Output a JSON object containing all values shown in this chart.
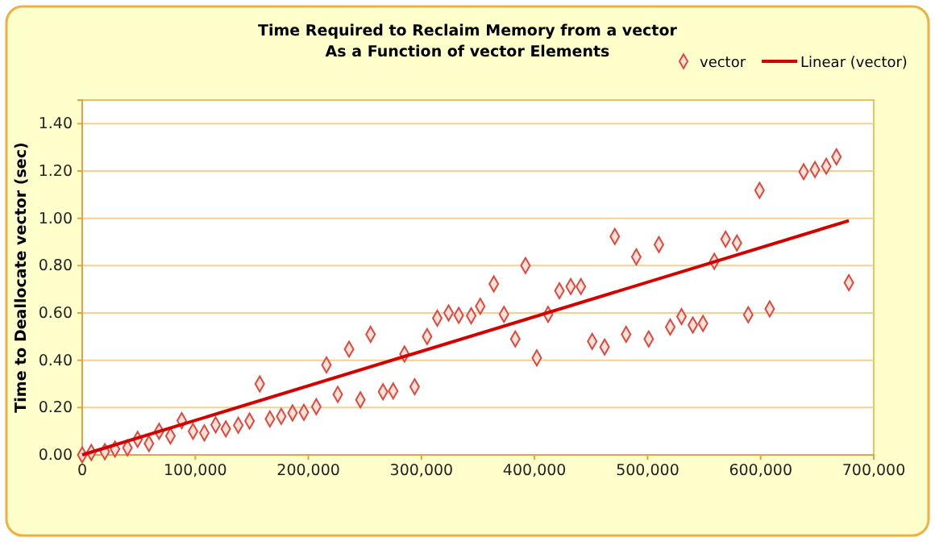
{
  "chart_data": {
    "type": "scatter",
    "title": "Time Required to Reclaim Memory from a vector\nAs a Function of vector Elements",
    "ylabel": "Time to Deallocate vector (sec)",
    "xlim": [
      0,
      700000
    ],
    "xticks": [
      {
        "value": 0,
        "label": "0"
      },
      {
        "value": 100000,
        "label": "100,000"
      },
      {
        "value": 200000,
        "label": "200,000"
      },
      {
        "value": 300000,
        "label": "300,000"
      },
      {
        "value": 400000,
        "label": "400,000"
      },
      {
        "value": 500000,
        "label": "500,000"
      },
      {
        "value": 600000,
        "label": "600,000"
      },
      {
        "value": 700000,
        "label": "700,000"
      }
    ],
    "ylim": [
      0,
      1.5
    ],
    "yticks": [
      {
        "value": 0,
        "label": "0.00"
      },
      {
        "value": 0.2,
        "label": "0.20"
      },
      {
        "value": 0.4,
        "label": "0.40"
      },
      {
        "value": 0.6,
        "label": "0.60"
      },
      {
        "value": 0.8,
        "label": "0.80"
      },
      {
        "value": 1.0,
        "label": "1.00"
      },
      {
        "value": 1.2,
        "label": "1.20"
      },
      {
        "value": 1.4,
        "label": "1.40"
      }
    ],
    "grid": "y",
    "legend": "top right",
    "series": [
      {
        "name": "vector",
        "marker": "diamond",
        "color": "#e0483c",
        "x": [
          0,
          8000,
          20000,
          29000,
          40000,
          49000,
          59000,
          68000,
          78000,
          88000,
          98000,
          108000,
          118000,
          127000,
          138000,
          148000,
          157000,
          166000,
          176000,
          186000,
          196000,
          207000,
          216000,
          226000,
          236000,
          246000,
          255000,
          266000,
          275000,
          285000,
          294000,
          305000,
          314000,
          324000,
          333000,
          344000,
          352000,
          364000,
          373000,
          383000,
          392000,
          402000,
          412000,
          422000,
          432000,
          441000,
          451000,
          462000,
          471000,
          481000,
          490000,
          501000,
          510000,
          520000,
          530000,
          540000,
          549000,
          559000,
          569000,
          579000,
          589000,
          599000,
          608000,
          638000,
          648000,
          658000,
          667000,
          678000
        ],
        "values": [
          0,
          0.01,
          0.014,
          0.025,
          0.03,
          0.066,
          0.048,
          0.1,
          0.08,
          0.145,
          0.1,
          0.093,
          0.127,
          0.11,
          0.125,
          0.143,
          0.3,
          0.152,
          0.163,
          0.177,
          0.18,
          0.204,
          0.38,
          0.256,
          0.447,
          0.233,
          0.51,
          0.267,
          0.27,
          0.426,
          0.288,
          0.5,
          0.578,
          0.6,
          0.59,
          0.588,
          0.628,
          0.723,
          0.594,
          0.49,
          0.8,
          0.41,
          0.594,
          0.694,
          0.712,
          0.712,
          0.48,
          0.456,
          0.923,
          0.51,
          0.837,
          0.49,
          0.889,
          0.54,
          0.585,
          0.549,
          0.556,
          0.818,
          0.912,
          0.896,
          0.592,
          1.118,
          0.617,
          1.197,
          1.206,
          1.22,
          1.26,
          0.728
        ]
      },
      {
        "name": "Linear (vector)",
        "type": "line",
        "color": "#d40000",
        "x": [
          0,
          678000
        ],
        "values": [
          0,
          0.99
        ]
      }
    ]
  }
}
